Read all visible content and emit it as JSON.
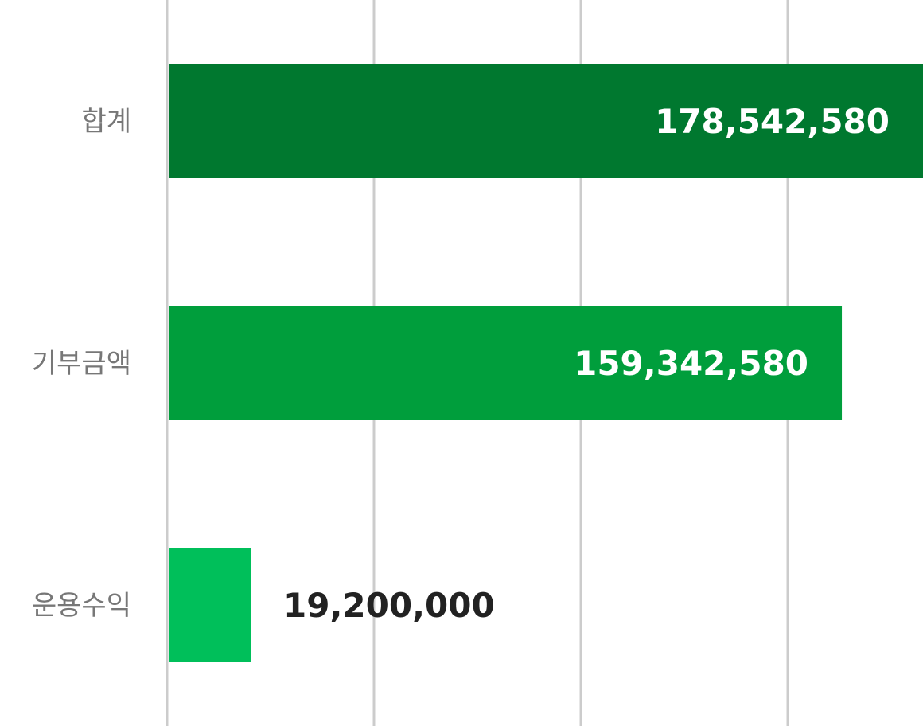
{
  "chart_data": {
    "type": "bar",
    "orientation": "horizontal",
    "categories": [
      "합계",
      "기부금액",
      "운용수익"
    ],
    "values": [
      178542580,
      159342580,
      19200000
    ],
    "value_labels": [
      "178,542,580",
      "159,342,580",
      "19,200,000"
    ],
    "colors": [
      "#00782F",
      "#009E3C",
      "#00BF5A"
    ],
    "xlim": [
      0,
      178542580
    ],
    "grid": true,
    "title": "",
    "xlabel": "",
    "ylabel": ""
  }
}
